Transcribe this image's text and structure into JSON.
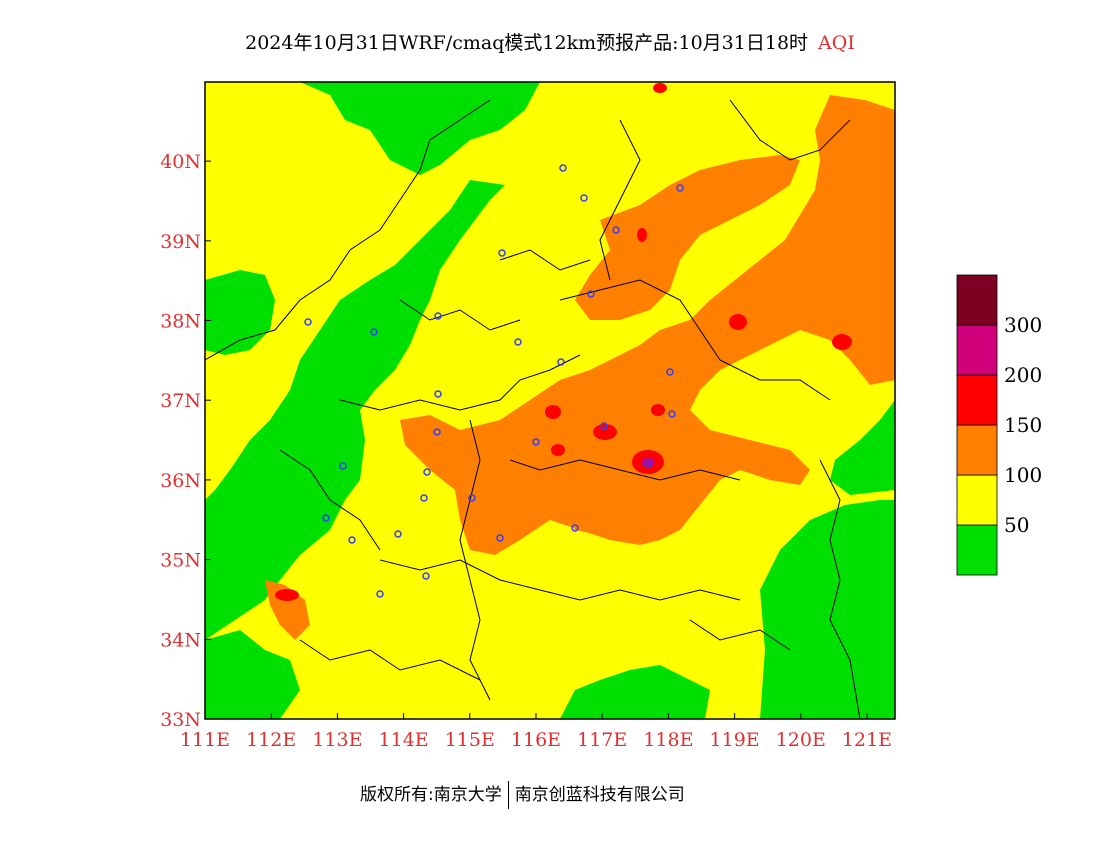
{
  "title": {
    "main": "2024年10月31日WRF/cmaq模式12km预报产品:10月31日18时",
    "variable": "AQI"
  },
  "axes": {
    "lat_labels": [
      "33N",
      "34N",
      "35N",
      "36N",
      "37N",
      "38N",
      "39N",
      "40N"
    ],
    "lon_labels": [
      "111E",
      "112E",
      "113E",
      "114E",
      "115E",
      "116E",
      "117E",
      "118E",
      "119E",
      "120E",
      "121E"
    ],
    "label_color": "#e03030"
  },
  "legend": {
    "items": [
      {
        "color": "#00e000",
        "label": "50"
      },
      {
        "color": "#ffff00",
        "label": "100"
      },
      {
        "color": "#ff8000",
        "label": "150"
      },
      {
        "color": "#ff0000",
        "label": "200"
      },
      {
        "color": "#d0007a",
        "label": "300"
      },
      {
        "color": "#7d0022",
        "label": ""
      }
    ]
  },
  "colors": {
    "good": "#00e000",
    "moderate": "#ffff00",
    "unhealthy_sensitive": "#ff8000",
    "unhealthy": "#ff0000",
    "very_unhealthy": "#d0007a",
    "hazardous": "#7d0022",
    "station_marker": "#3040ff",
    "boundary": "#000000"
  },
  "credit": {
    "left": "版权所有:南京大学",
    "right": "南京创蓝科技有限公司"
  }
}
